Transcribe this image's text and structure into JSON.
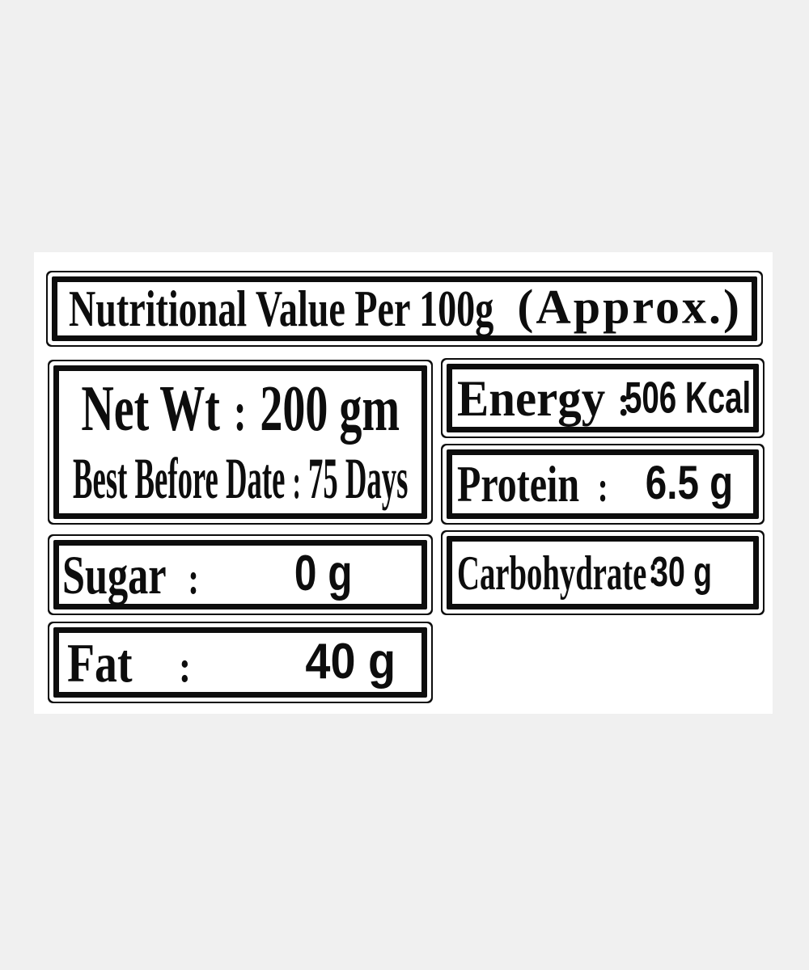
{
  "label": {
    "title": {
      "main": "Nutritional Value Per 100g",
      "approx": "(Approx.)"
    },
    "net_wt": {
      "line1": {
        "label": "Net Wt",
        "colon": ":",
        "value": "200 gm"
      },
      "line2": {
        "label": "Best Before Date",
        "colon": ":",
        "value": "75 Days"
      }
    },
    "rows": {
      "energy": {
        "label": "Energy",
        "colon": ":",
        "value": "506 Kcal"
      },
      "protein": {
        "label": "Protein",
        "colon": ":",
        "value": "6.5 g"
      },
      "sugar": {
        "label": "Sugar",
        "colon": ":",
        "value": "0 g"
      },
      "carbohydrate": {
        "label": "Carbohydrate",
        "colon": ":",
        "value": "30 g"
      },
      "fat": {
        "label": "Fat",
        "colon": ":",
        "value": "40 g"
      }
    },
    "colors": {
      "page_background": "#f0f0f0",
      "label_background": "#ffffff",
      "ink": "#0d0d0d"
    }
  }
}
